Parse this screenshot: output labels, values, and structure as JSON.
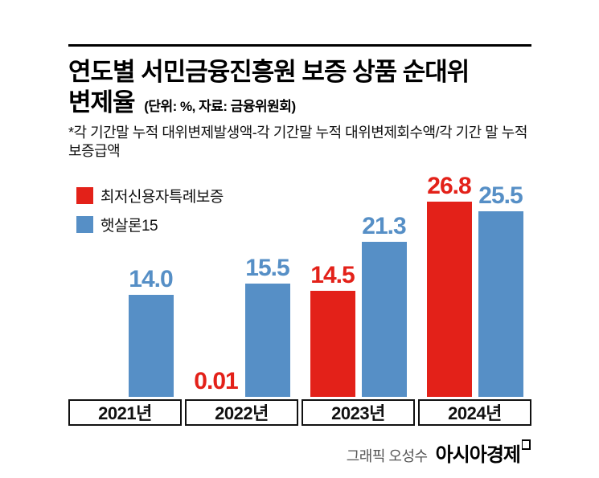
{
  "page": {
    "background": "#ffffff"
  },
  "header": {
    "title_line1": "연도별 서민금융진흥원 보증 상품 순대위",
    "title_line2": "변제율",
    "unit_note": "(단위: %, 자료: 금융위원회)",
    "footnote": "*각 기간말 누적 대위변제발생액-각 기간말 누적 대위변제회수액/각 기간 말 누적 보증급액"
  },
  "legend": {
    "items": [
      {
        "label": "최저신용자특례보증",
        "color": "#e32119"
      },
      {
        "label": "햇살론15",
        "color": "#568fc6"
      }
    ]
  },
  "chart_data": {
    "type": "bar",
    "categories": [
      "2021년",
      "2022년",
      "2023년",
      "2024년"
    ],
    "series": [
      {
        "name": "최저신용자특례보증",
        "color": "#e32119",
        "values": [
          null,
          0.01,
          14.5,
          26.8
        ],
        "labels": [
          "",
          "0.01",
          "14.5",
          "26.8"
        ]
      },
      {
        "name": "햇살론15",
        "color": "#568fc6",
        "values": [
          14.0,
          15.5,
          21.3,
          25.5
        ],
        "labels": [
          "14.0",
          "15.5",
          "21.3",
          "25.5"
        ]
      }
    ],
    "unit": "%",
    "source": "금융위원회",
    "ylim": [
      0,
      28
    ],
    "grid": false,
    "legend_position": "top-left",
    "value_labels": true
  },
  "footer": {
    "credit": "그래픽 오성수",
    "brand": "아시아경제"
  }
}
